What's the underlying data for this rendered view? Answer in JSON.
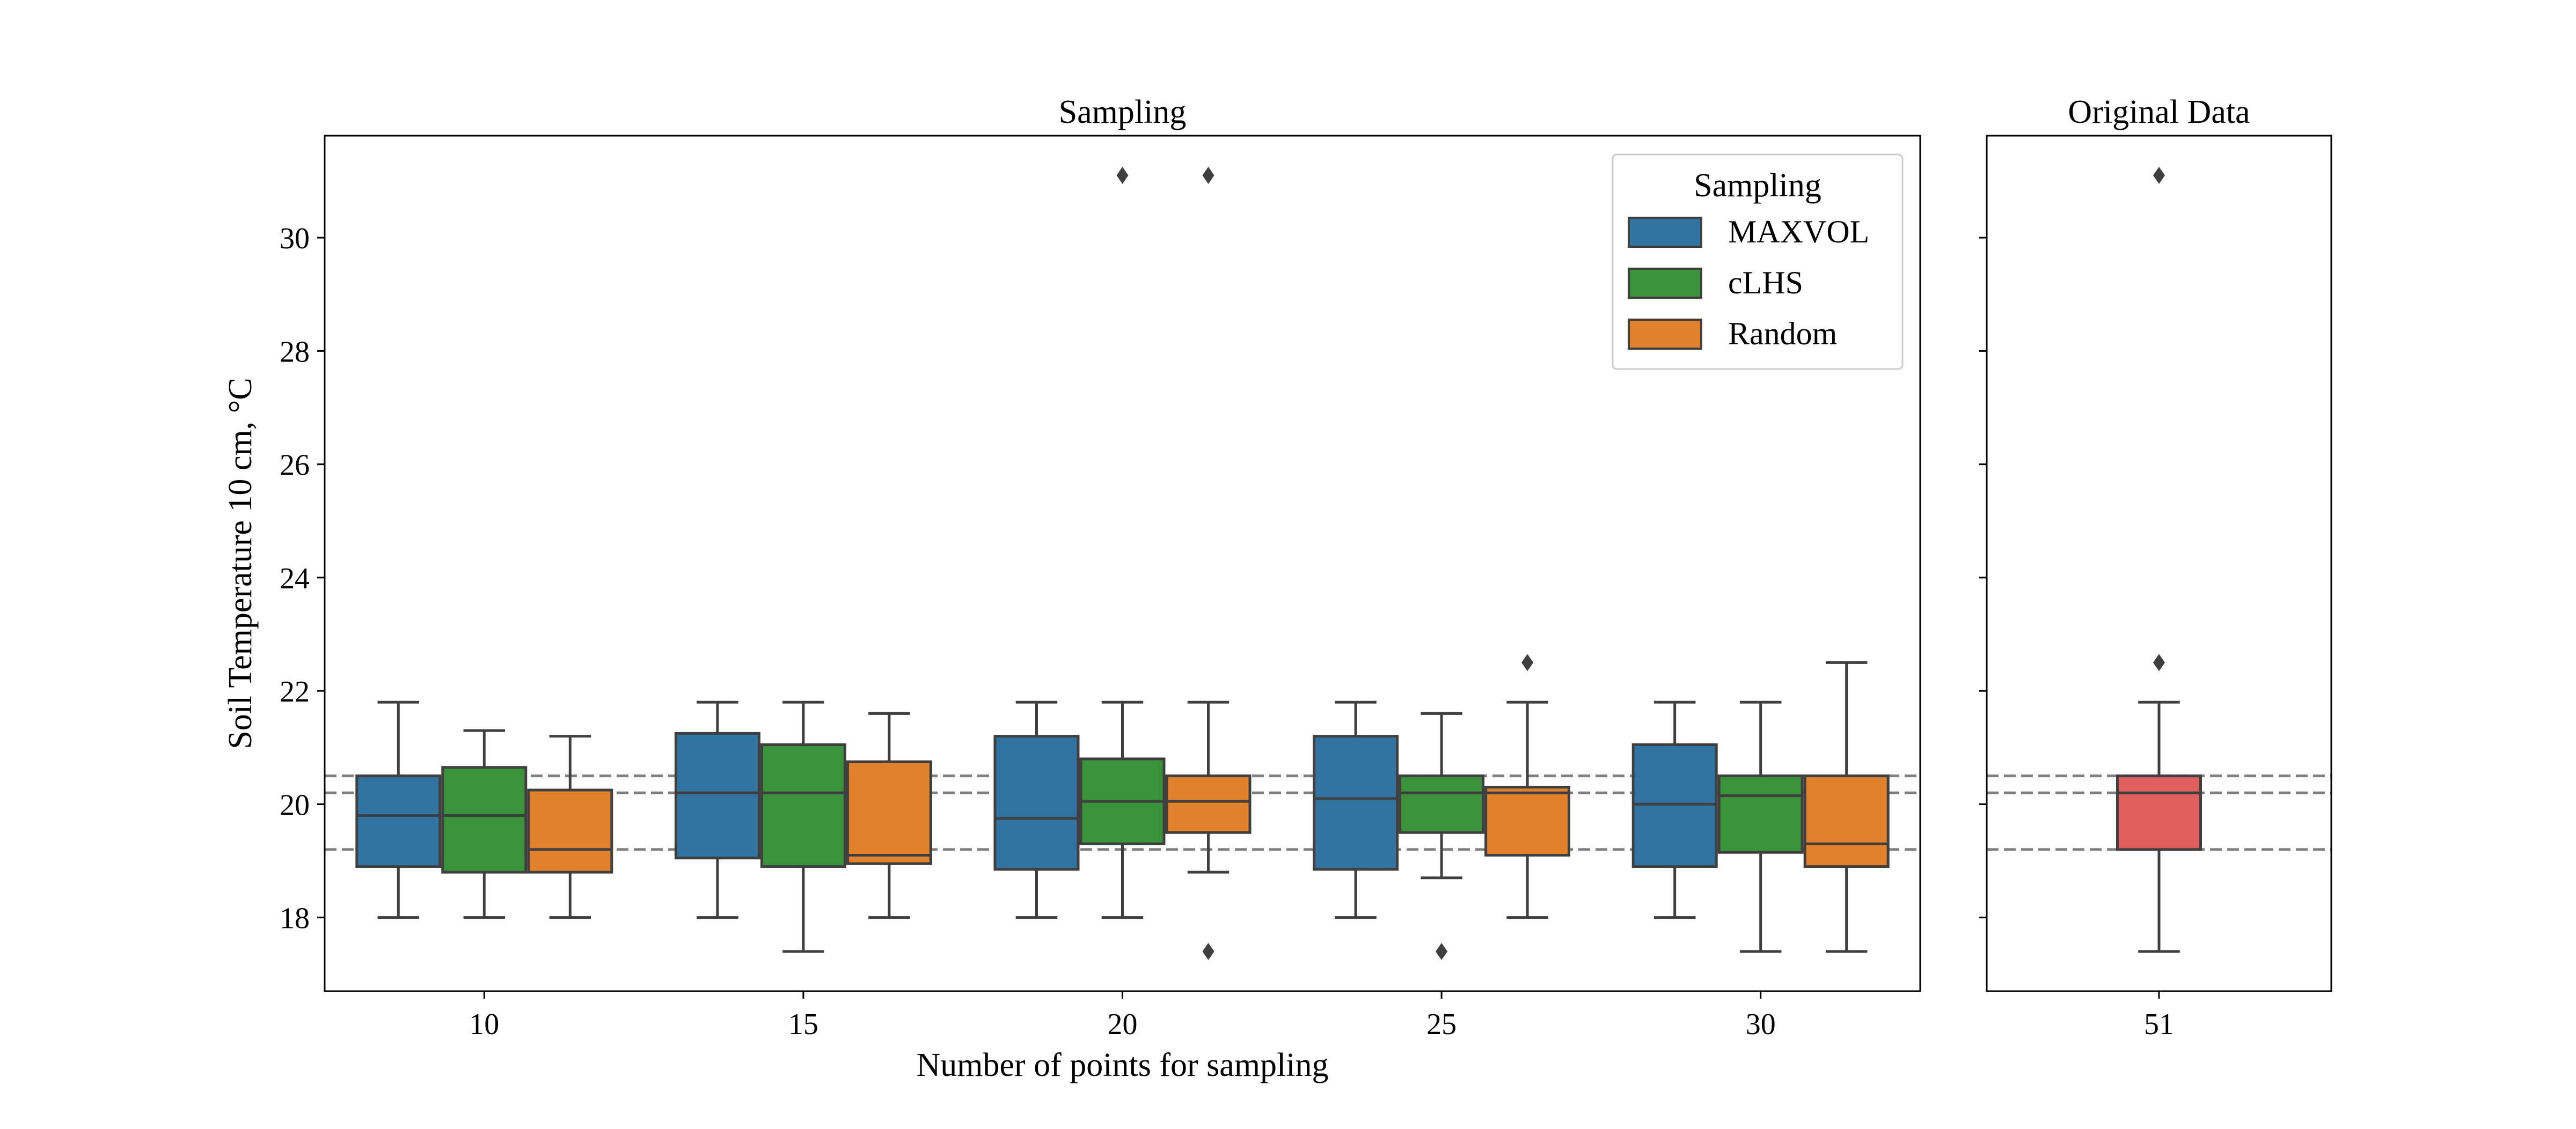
{
  "chart_data": {
    "type": "box",
    "ylabel": "Soil Temperature 10 cm, °C",
    "ylim": [
      16.7,
      31.8
    ],
    "yticks": [
      18,
      20,
      22,
      24,
      26,
      28,
      30
    ],
    "reference_lines": [
      19.2,
      20.2,
      20.5
    ],
    "colors": {
      "MAXVOL": "#3274a1",
      "cLHS": "#3a923a",
      "Random": "#e1812c",
      "original": "#e05f5f",
      "line": "#3f3f3f",
      "ref": "#7f7f7f"
    },
    "panels": [
      {
        "title": "Sampling",
        "xlabel": "Number of points for sampling",
        "categories": [
          "10",
          "15",
          "20",
          "25",
          "30"
        ],
        "legend": {
          "title": "Sampling",
          "placement": "upper-right",
          "entries": [
            "MAXVOL",
            "cLHS",
            "Random"
          ]
        },
        "series": [
          {
            "name": "MAXVOL",
            "boxes": [
              {
                "whislo": 18.0,
                "q1": 18.9,
                "med": 19.8,
                "q3": 20.5,
                "whishi": 21.8,
                "fliers": []
              },
              {
                "whislo": 18.0,
                "q1": 19.05,
                "med": 20.2,
                "q3": 21.25,
                "whishi": 21.8,
                "fliers": []
              },
              {
                "whislo": 18.0,
                "q1": 18.85,
                "med": 19.75,
                "q3": 21.2,
                "whishi": 21.8,
                "fliers": []
              },
              {
                "whislo": 18.0,
                "q1": 18.85,
                "med": 20.1,
                "q3": 21.2,
                "whishi": 21.8,
                "fliers": []
              },
              {
                "whislo": 18.0,
                "q1": 18.9,
                "med": 20.0,
                "q3": 21.05,
                "whishi": 21.8,
                "fliers": []
              }
            ]
          },
          {
            "name": "cLHS",
            "boxes": [
              {
                "whislo": 18.0,
                "q1": 18.8,
                "med": 19.8,
                "q3": 20.65,
                "whishi": 21.3,
                "fliers": []
              },
              {
                "whislo": 17.4,
                "q1": 18.9,
                "med": 20.2,
                "q3": 21.05,
                "whishi": 21.8,
                "fliers": []
              },
              {
                "whislo": 18.0,
                "q1": 19.3,
                "med": 20.05,
                "q3": 20.8,
                "whishi": 21.8,
                "fliers": [
                  31.1
                ]
              },
              {
                "whislo": 18.7,
                "q1": 19.5,
                "med": 20.2,
                "q3": 20.5,
                "whishi": 21.6,
                "fliers": [
                  17.4
                ]
              },
              {
                "whislo": 17.4,
                "q1": 19.15,
                "med": 20.15,
                "q3": 20.5,
                "whishi": 21.8,
                "fliers": []
              }
            ]
          },
          {
            "name": "Random",
            "boxes": [
              {
                "whislo": 18.0,
                "q1": 18.8,
                "med": 19.2,
                "q3": 20.25,
                "whishi": 21.2,
                "fliers": []
              },
              {
                "whislo": 18.0,
                "q1": 18.95,
                "med": 19.1,
                "q3": 20.75,
                "whishi": 21.6,
                "fliers": []
              },
              {
                "whislo": 18.8,
                "q1": 19.5,
                "med": 20.05,
                "q3": 20.5,
                "whishi": 21.8,
                "fliers": [
                  31.1,
                  17.4
                ]
              },
              {
                "whislo": 18.0,
                "q1": 19.1,
                "med": 20.2,
                "q3": 20.3,
                "whishi": 21.8,
                "fliers": [
                  22.5
                ]
              },
              {
                "whislo": 17.4,
                "q1": 18.9,
                "med": 19.3,
                "q3": 20.5,
                "whishi": 22.5,
                "fliers": []
              }
            ]
          }
        ]
      },
      {
        "title": "Original Data",
        "xlabel": "",
        "categories": [
          "51"
        ],
        "series": [
          {
            "name": "",
            "boxes": [
              {
                "whislo": 17.4,
                "q1": 19.2,
                "med": 20.2,
                "q3": 20.5,
                "whishi": 21.8,
                "fliers": [
                  31.1,
                  22.5
                ]
              }
            ]
          }
        ]
      }
    ]
  }
}
